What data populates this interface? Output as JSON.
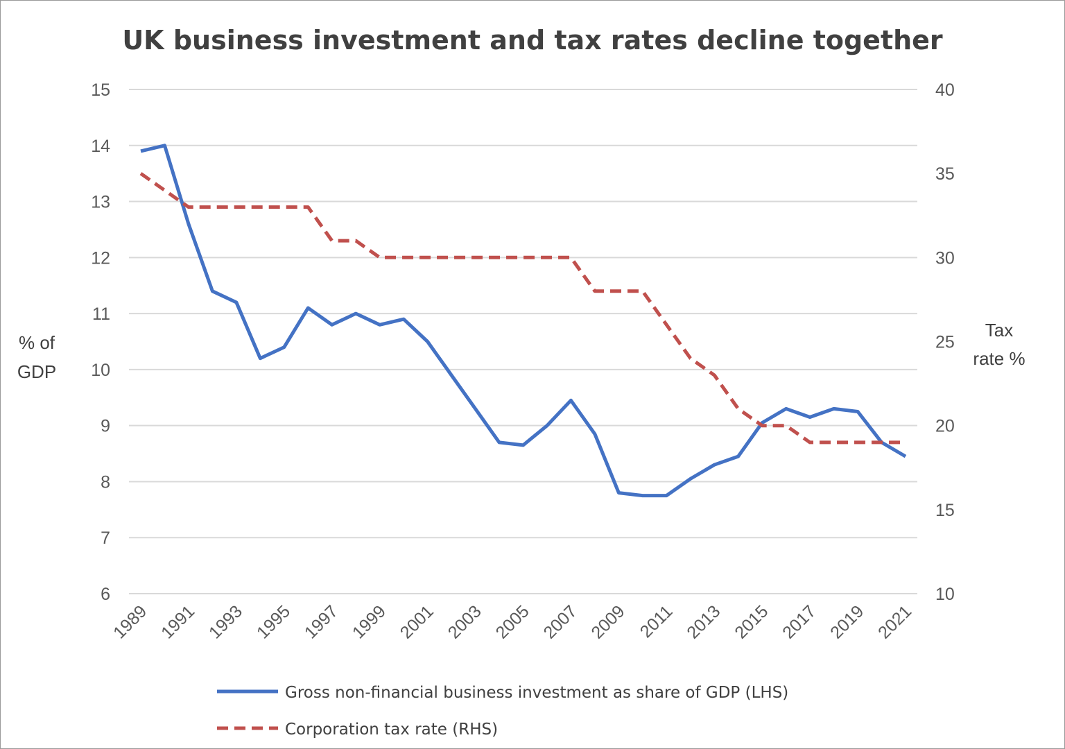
{
  "chart_data": {
    "type": "line",
    "title": "UK business investment and tax rates decline together",
    "ylabel_left": [
      "% of",
      "GDP"
    ],
    "ylabel_right": [
      "Tax",
      "rate %"
    ],
    "x": [
      1989,
      1990,
      1991,
      1992,
      1993,
      1994,
      1995,
      1996,
      1997,
      1998,
      1999,
      2000,
      2001,
      2002,
      2003,
      2004,
      2005,
      2006,
      2007,
      2008,
      2009,
      2010,
      2011,
      2012,
      2013,
      2014,
      2015,
      2016,
      2017,
      2018,
      2019,
      2020,
      2021
    ],
    "x_tick_labels": [
      "1989",
      "1991",
      "1993",
      "1995",
      "1997",
      "1999",
      "2001",
      "2003",
      "2005",
      "2007",
      "2009",
      "2011",
      "2013",
      "2015",
      "2017",
      "2019",
      "2021"
    ],
    "ylim_left": [
      6,
      15
    ],
    "yticks_left": [
      "6",
      "7",
      "8",
      "9",
      "10",
      "11",
      "12",
      "13",
      "14",
      "15"
    ],
    "ylim_right": [
      10,
      40
    ],
    "yticks_right": [
      "10",
      "15",
      "20",
      "25",
      "30",
      "35",
      "40"
    ],
    "grid": true,
    "legend_position": "bottom",
    "series": [
      {
        "name": "Gross non-financial business investment as share of GDP (LHS)",
        "axis": "left",
        "color": "#4472c4",
        "style": "solid",
        "values": [
          13.9,
          14.0,
          12.6,
          11.4,
          11.2,
          10.2,
          10.4,
          11.1,
          10.8,
          11.0,
          10.8,
          10.9,
          10.5,
          9.9,
          9.3,
          8.7,
          8.65,
          9.0,
          9.45,
          8.85,
          7.8,
          7.75,
          7.75,
          8.05,
          8.3,
          8.45,
          9.05,
          9.3,
          9.15,
          9.3,
          9.25,
          8.7,
          8.45
        ]
      },
      {
        "name": "Corporation tax rate (RHS)",
        "axis": "right",
        "color": "#c0504d",
        "style": "dashed",
        "values": [
          35,
          34,
          33,
          33,
          33,
          33,
          33,
          33,
          31,
          31,
          30,
          30,
          30,
          30,
          30,
          30,
          30,
          30,
          30,
          28,
          28,
          28,
          26,
          24,
          23,
          21,
          20,
          20,
          19,
          19,
          19,
          19,
          19
        ]
      }
    ]
  }
}
